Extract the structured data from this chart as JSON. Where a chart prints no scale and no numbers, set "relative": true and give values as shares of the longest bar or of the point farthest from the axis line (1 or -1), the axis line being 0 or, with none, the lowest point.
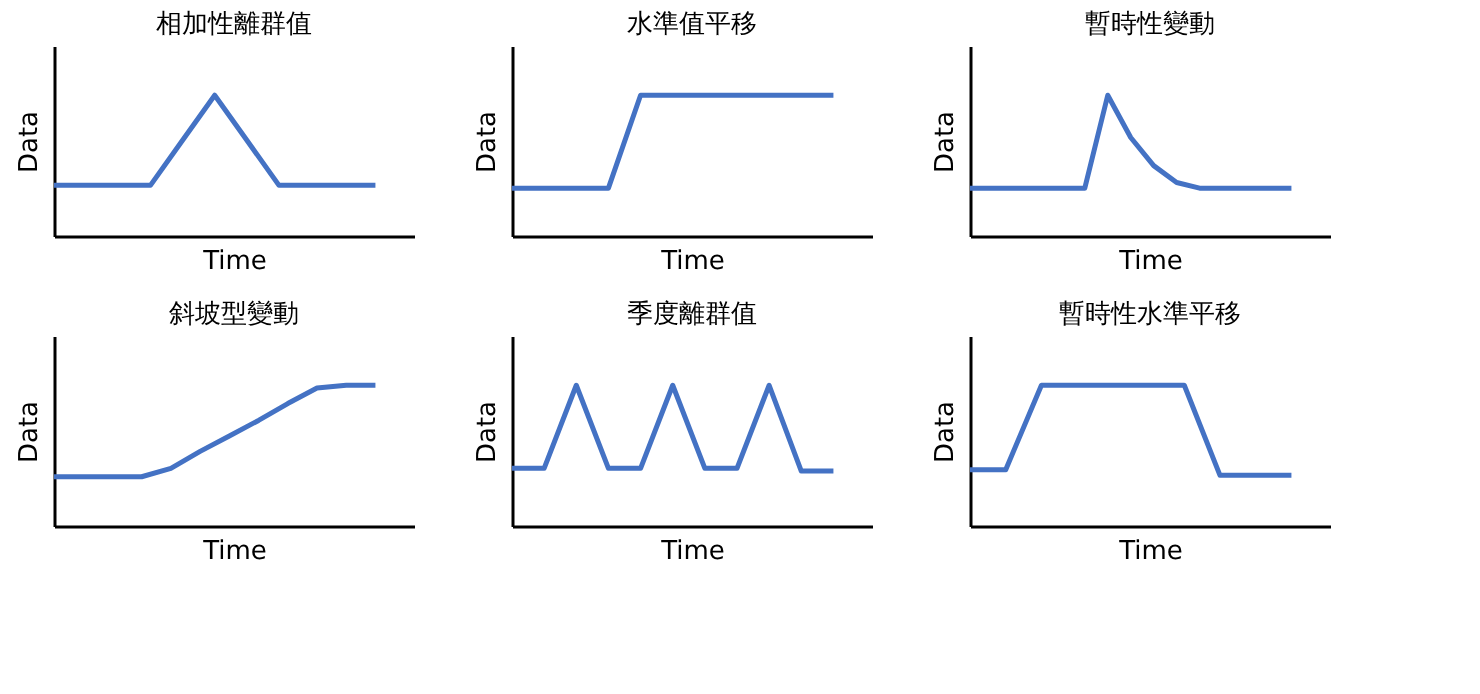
{
  "chart_data": [
    {
      "type": "line",
      "relative": true,
      "title": "相加性離群值",
      "xlabel": "Time",
      "ylabel": "Data",
      "categories": [
        null,
        null,
        null,
        null,
        null,
        null,
        null,
        null,
        null,
        null,
        null
      ],
      "series": [
        {
          "color": "#4472c4",
          "values": [
            0.36,
            0.36,
            0.36,
            0.36,
            0.68,
            1,
            0.68,
            0.36,
            0.36,
            0.36,
            0.36
          ]
        }
      ]
    },
    {
      "type": "line",
      "relative": true,
      "title": "水準值平移",
      "xlabel": "Time",
      "ylabel": "Data",
      "categories": [
        null,
        null,
        null,
        null,
        null,
        null,
        null,
        null,
        null,
        null,
        null
      ],
      "series": [
        {
          "color": "#4472c4",
          "values": [
            0.34,
            0.34,
            0.34,
            0.34,
            1,
            1,
            1,
            1,
            1,
            1,
            1
          ]
        }
      ]
    },
    {
      "type": "line",
      "relative": true,
      "title": "暫時性變動",
      "xlabel": "Time",
      "ylabel": "Data",
      "categories": [
        null,
        null,
        null,
        null,
        null,
        null,
        null,
        null,
        null,
        null,
        null,
        null,
        null,
        null,
        null
      ],
      "series": [
        {
          "color": "#4472c4",
          "values": [
            0.34,
            0.34,
            0.34,
            0.34,
            0.34,
            0.34,
            1,
            0.7,
            0.5,
            0.38,
            0.34,
            0.34,
            0.34,
            0.34,
            0.34
          ]
        }
      ]
    },
    {
      "type": "line",
      "relative": true,
      "title": "斜坡型變動",
      "xlabel": "Time",
      "ylabel": "Data",
      "categories": [
        null,
        null,
        null,
        null,
        null,
        null,
        null,
        null,
        null,
        null,
        null,
        null
      ],
      "series": [
        {
          "color": "#4472c4",
          "values": [
            0.35,
            0.35,
            0.35,
            0.35,
            0.41,
            0.53,
            0.64,
            0.75,
            0.87,
            0.98,
            1,
            1
          ]
        }
      ]
    },
    {
      "type": "line",
      "relative": true,
      "title": "季度離群值",
      "xlabel": "Time",
      "ylabel": "Data",
      "categories": [
        null,
        null,
        null,
        null,
        null,
        null,
        null,
        null,
        null,
        null,
        null
      ],
      "series": [
        {
          "color": "#4472c4",
          "values": [
            0.41,
            0.41,
            1,
            0.41,
            0.41,
            1,
            0.41,
            0.41,
            1,
            0.39,
            0.39
          ]
        }
      ]
    },
    {
      "type": "line",
      "relative": true,
      "title": "暫時性水準平移",
      "xlabel": "Time",
      "ylabel": "Data",
      "categories": [
        null,
        null,
        null,
        null,
        null,
        null,
        null,
        null,
        null,
        null
      ],
      "series": [
        {
          "color": "#4472c4",
          "values": [
            0.4,
            0.4,
            1,
            1,
            1,
            1,
            1,
            0.36,
            0.36,
            0.36
          ]
        }
      ]
    }
  ]
}
